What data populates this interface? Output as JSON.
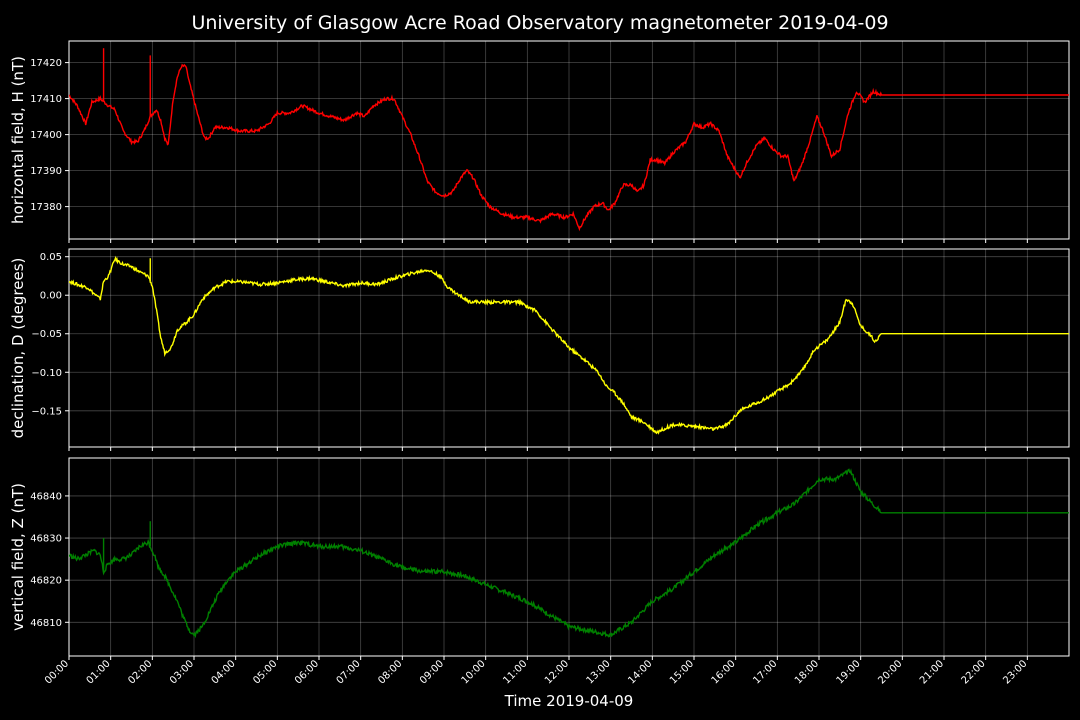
{
  "chart_data": {
    "type": "line",
    "title": "University of Glasgow Acre Road Observatory magnetometer 2019-04-09",
    "xlabel": "Time 2019-04-09",
    "x_ticks": [
      "00:00",
      "01:00",
      "02:00",
      "03:00",
      "04:00",
      "05:00",
      "06:00",
      "07:00",
      "08:00",
      "09:00",
      "10:00",
      "11:00",
      "12:00",
      "13:00",
      "14:00",
      "15:00",
      "16:00",
      "17:00",
      "18:00",
      "19:00",
      "20:00",
      "21:00",
      "22:00",
      "23:00"
    ],
    "xlim_hours": [
      0,
      24
    ],
    "grid": true,
    "panels": [
      {
        "id": "H",
        "ylabel": "horizontal field, H (nT)",
        "color": "#ff0000",
        "ylim": [
          17371,
          17426
        ],
        "y_ticks": [
          17380,
          17390,
          17400,
          17410,
          17420
        ],
        "y_tick_labels": [
          "17380",
          "17390",
          "17400",
          "17410",
          "17420"
        ],
        "spikes": [
          [
            0.83,
            17424
          ],
          [
            1.95,
            17422
          ]
        ],
        "points": [
          [
            0.0,
            17411
          ],
          [
            0.2,
            17408
          ],
          [
            0.4,
            17403
          ],
          [
            0.55,
            17409
          ],
          [
            0.75,
            17410
          ],
          [
            0.95,
            17408
          ],
          [
            1.1,
            17407
          ],
          [
            1.3,
            17401
          ],
          [
            1.5,
            17398
          ],
          [
            1.65,
            17398
          ],
          [
            1.8,
            17401
          ],
          [
            1.95,
            17405
          ],
          [
            2.1,
            17407
          ],
          [
            2.2,
            17404
          ],
          [
            2.3,
            17399
          ],
          [
            2.38,
            17397
          ],
          [
            2.5,
            17410
          ],
          [
            2.6,
            17416
          ],
          [
            2.7,
            17419
          ],
          [
            2.8,
            17419
          ],
          [
            2.9,
            17414
          ],
          [
            3.1,
            17405
          ],
          [
            3.25,
            17399
          ],
          [
            3.35,
            17399
          ],
          [
            3.5,
            17402
          ],
          [
            3.8,
            17402
          ],
          [
            4.1,
            17401
          ],
          [
            4.5,
            17401
          ],
          [
            4.8,
            17403
          ],
          [
            5.0,
            17406
          ],
          [
            5.3,
            17406
          ],
          [
            5.6,
            17408
          ],
          [
            5.8,
            17407
          ],
          [
            6.0,
            17406
          ],
          [
            6.3,
            17405
          ],
          [
            6.6,
            17404
          ],
          [
            6.9,
            17406
          ],
          [
            7.1,
            17405
          ],
          [
            7.3,
            17408
          ],
          [
            7.6,
            17410
          ],
          [
            7.8,
            17410
          ],
          [
            8.0,
            17405
          ],
          [
            8.2,
            17400
          ],
          [
            8.4,
            17394
          ],
          [
            8.6,
            17387
          ],
          [
            8.8,
            17384
          ],
          [
            9.0,
            17383
          ],
          [
            9.2,
            17384
          ],
          [
            9.4,
            17388
          ],
          [
            9.55,
            17390
          ],
          [
            9.7,
            17388
          ],
          [
            9.9,
            17383
          ],
          [
            10.1,
            17380
          ],
          [
            10.4,
            17378
          ],
          [
            10.7,
            17377
          ],
          [
            11.0,
            17377
          ],
          [
            11.3,
            17376
          ],
          [
            11.6,
            17378
          ],
          [
            11.9,
            17377
          ],
          [
            12.1,
            17378
          ],
          [
            12.25,
            17374
          ],
          [
            12.4,
            17377
          ],
          [
            12.6,
            17380
          ],
          [
            12.8,
            17381
          ],
          [
            12.95,
            17379
          ],
          [
            13.1,
            17381
          ],
          [
            13.3,
            17386
          ],
          [
            13.5,
            17386
          ],
          [
            13.65,
            17384
          ],
          [
            13.8,
            17386
          ],
          [
            13.95,
            17393
          ],
          [
            14.1,
            17393
          ],
          [
            14.3,
            17392
          ],
          [
            14.5,
            17395
          ],
          [
            14.8,
            17398
          ],
          [
            15.0,
            17403
          ],
          [
            15.2,
            17402
          ],
          [
            15.4,
            17403
          ],
          [
            15.6,
            17401
          ],
          [
            15.8,
            17394
          ],
          [
            15.95,
            17391
          ],
          [
            16.1,
            17388
          ],
          [
            16.3,
            17393
          ],
          [
            16.5,
            17397
          ],
          [
            16.7,
            17399
          ],
          [
            16.9,
            17396
          ],
          [
            17.1,
            17394
          ],
          [
            17.25,
            17394
          ],
          [
            17.4,
            17387
          ],
          [
            17.6,
            17392
          ],
          [
            17.8,
            17399
          ],
          [
            17.95,
            17405
          ],
          [
            18.1,
            17401
          ],
          [
            18.3,
            17394
          ],
          [
            18.5,
            17396
          ],
          [
            18.7,
            17406
          ],
          [
            18.9,
            17412
          ],
          [
            19.1,
            17409
          ],
          [
            19.3,
            17412
          ],
          [
            19.5,
            17411
          ],
          [
            24.0,
            17411
          ]
        ]
      },
      {
        "id": "D",
        "ylabel": "declination, D (degrees)",
        "color": "#ffff00",
        "ylim": [
          -0.197,
          0.06
        ],
        "y_ticks": [
          -0.15,
          -0.1,
          -0.05,
          0.0,
          0.05
        ],
        "y_tick_labels": [
          "−0.15",
          "−0.10",
          "−0.05",
          "0.00",
          "0.05"
        ],
        "spikes": [
          [
            1.95,
            0.048
          ]
        ],
        "points": [
          [
            0.0,
            0.018
          ],
          [
            0.25,
            0.013
          ],
          [
            0.45,
            0.01
          ],
          [
            0.6,
            0.002
          ],
          [
            0.75,
            -0.005
          ],
          [
            0.83,
            0.018
          ],
          [
            0.95,
            0.025
          ],
          [
            1.1,
            0.047
          ],
          [
            1.3,
            0.04
          ],
          [
            1.5,
            0.037
          ],
          [
            1.7,
            0.03
          ],
          [
            1.9,
            0.025
          ],
          [
            2.0,
            0.012
          ],
          [
            2.1,
            -0.02
          ],
          [
            2.2,
            -0.055
          ],
          [
            2.3,
            -0.075
          ],
          [
            2.45,
            -0.068
          ],
          [
            2.6,
            -0.045
          ],
          [
            2.8,
            -0.036
          ],
          [
            3.0,
            -0.025
          ],
          [
            3.2,
            -0.005
          ],
          [
            3.5,
            0.01
          ],
          [
            3.8,
            0.018
          ],
          [
            4.2,
            0.017
          ],
          [
            4.6,
            0.014
          ],
          [
            5.0,
            0.016
          ],
          [
            5.4,
            0.02
          ],
          [
            5.8,
            0.022
          ],
          [
            6.2,
            0.017
          ],
          [
            6.6,
            0.012
          ],
          [
            7.0,
            0.016
          ],
          [
            7.4,
            0.014
          ],
          [
            7.8,
            0.022
          ],
          [
            8.2,
            0.028
          ],
          [
            8.6,
            0.033
          ],
          [
            8.9,
            0.025
          ],
          [
            9.1,
            0.01
          ],
          [
            9.3,
            0.002
          ],
          [
            9.6,
            -0.008
          ],
          [
            10.0,
            -0.009
          ],
          [
            10.4,
            -0.009
          ],
          [
            10.8,
            -0.009
          ],
          [
            11.2,
            -0.02
          ],
          [
            11.6,
            -0.045
          ],
          [
            12.0,
            -0.068
          ],
          [
            12.4,
            -0.085
          ],
          [
            12.7,
            -0.1
          ],
          [
            12.9,
            -0.118
          ],
          [
            13.1,
            -0.127
          ],
          [
            13.3,
            -0.14
          ],
          [
            13.5,
            -0.158
          ],
          [
            13.8,
            -0.165
          ],
          [
            14.1,
            -0.178
          ],
          [
            14.5,
            -0.168
          ],
          [
            15.0,
            -0.17
          ],
          [
            15.5,
            -0.174
          ],
          [
            15.8,
            -0.168
          ],
          [
            16.1,
            -0.15
          ],
          [
            16.4,
            -0.142
          ],
          [
            16.7,
            -0.135
          ],
          [
            17.0,
            -0.125
          ],
          [
            17.3,
            -0.115
          ],
          [
            17.6,
            -0.098
          ],
          [
            17.9,
            -0.07
          ],
          [
            18.2,
            -0.058
          ],
          [
            18.5,
            -0.035
          ],
          [
            18.65,
            -0.005
          ],
          [
            18.8,
            -0.01
          ],
          [
            19.0,
            -0.04
          ],
          [
            19.2,
            -0.05
          ],
          [
            19.35,
            -0.06
          ],
          [
            19.5,
            -0.05
          ],
          [
            24.0,
            -0.05
          ]
        ]
      },
      {
        "id": "Z",
        "ylabel": "vertical field, Z (nT)",
        "color": "#008000",
        "ylim": [
          46802,
          46849
        ],
        "y_ticks": [
          46810,
          46820,
          46830,
          46840
        ],
        "y_tick_labels": [
          "46810",
          "46820",
          "46830",
          "46840"
        ],
        "spikes": [
          [
            0.83,
            46830
          ],
          [
            1.95,
            46834
          ]
        ],
        "points": [
          [
            0.0,
            46826
          ],
          [
            0.2,
            46825
          ],
          [
            0.4,
            46826
          ],
          [
            0.6,
            46827
          ],
          [
            0.75,
            46826
          ],
          [
            0.83,
            46822
          ],
          [
            0.95,
            46824
          ],
          [
            1.1,
            46825
          ],
          [
            1.3,
            46825
          ],
          [
            1.5,
            46826
          ],
          [
            1.7,
            46828
          ],
          [
            1.9,
            46829
          ],
          [
            2.05,
            46826
          ],
          [
            2.15,
            46823
          ],
          [
            2.3,
            46821
          ],
          [
            2.45,
            46818
          ],
          [
            2.6,
            46815
          ],
          [
            2.75,
            46811
          ],
          [
            2.9,
            46808
          ],
          [
            3.0,
            46807
          ],
          [
            3.2,
            46809
          ],
          [
            3.4,
            46813
          ],
          [
            3.6,
            46817
          ],
          [
            3.8,
            46820
          ],
          [
            4.0,
            46822
          ],
          [
            4.3,
            46824
          ],
          [
            4.6,
            46826
          ],
          [
            5.0,
            46828
          ],
          [
            5.5,
            46829
          ],
          [
            6.0,
            46828
          ],
          [
            6.5,
            46828
          ],
          [
            7.0,
            46827
          ],
          [
            7.5,
            46825
          ],
          [
            8.0,
            46823
          ],
          [
            8.5,
            46822
          ],
          [
            9.0,
            46822
          ],
          [
            9.5,
            46821
          ],
          [
            10.0,
            46819
          ],
          [
            10.5,
            46817
          ],
          [
            11.0,
            46815
          ],
          [
            11.5,
            46812
          ],
          [
            12.0,
            46809
          ],
          [
            12.5,
            46808
          ],
          [
            13.0,
            46807
          ],
          [
            13.5,
            46810
          ],
          [
            14.0,
            46815
          ],
          [
            14.5,
            46818
          ],
          [
            15.0,
            46822
          ],
          [
            15.5,
            46826
          ],
          [
            16.0,
            46829
          ],
          [
            16.5,
            46833
          ],
          [
            17.0,
            46836
          ],
          [
            17.4,
            46838
          ],
          [
            17.7,
            46841
          ],
          [
            18.0,
            46844
          ],
          [
            18.4,
            46844
          ],
          [
            18.75,
            46846
          ],
          [
            19.0,
            46841
          ],
          [
            19.3,
            46838
          ],
          [
            19.5,
            46836
          ],
          [
            24.0,
            46836
          ]
        ]
      }
    ]
  }
}
